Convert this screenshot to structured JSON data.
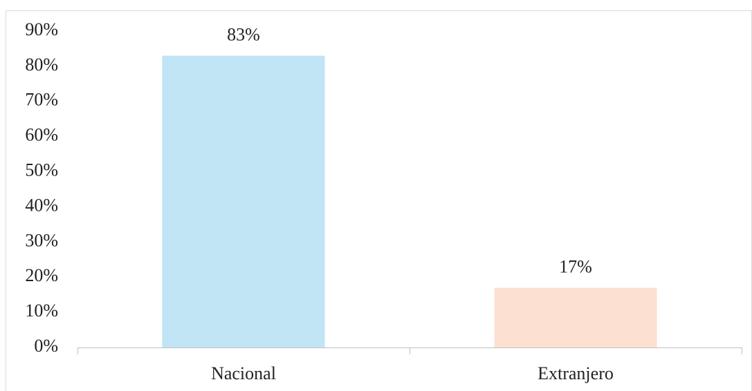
{
  "chart_data": {
    "type": "bar",
    "categories": [
      "Nacional",
      "Extranjero"
    ],
    "values": [
      83,
      17
    ],
    "value_labels": [
      "83%",
      "17%"
    ],
    "colors": [
      "#c2e5f5",
      "#fce1d2"
    ],
    "ylim": [
      0,
      90
    ],
    "yticks": [
      {
        "value": 0,
        "label": "0%"
      },
      {
        "value": 10,
        "label": "10%"
      },
      {
        "value": 20,
        "label": "20%"
      },
      {
        "value": 30,
        "label": "30%"
      },
      {
        "value": 40,
        "label": "40%"
      },
      {
        "value": 50,
        "label": "50%"
      },
      {
        "value": 60,
        "label": "60%"
      },
      {
        "value": 70,
        "label": "70%"
      },
      {
        "value": 80,
        "label": "80%"
      },
      {
        "value": 90,
        "label": "90%"
      }
    ],
    "grid": false
  }
}
